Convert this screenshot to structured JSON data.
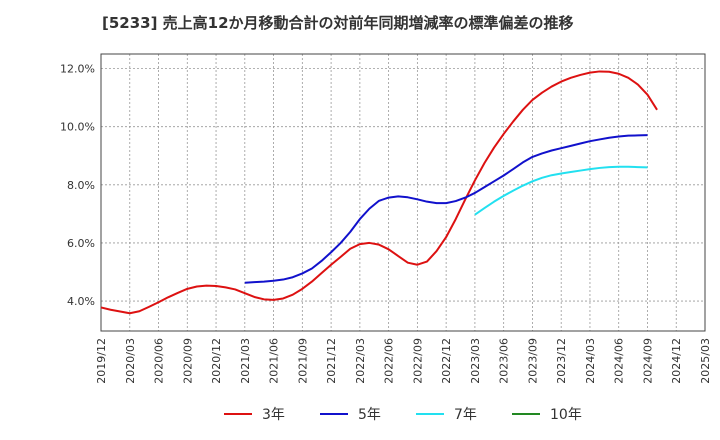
{
  "title": "[5233]  売上高12か月移動合計の対前年同期増減率の標準偏差の推移",
  "chart_data": {
    "type": "line",
    "title": "[5233]  売上高12か月移動合計の対前年同期増減率の標準偏差の推移",
    "xlabel": "",
    "ylabel": "",
    "x_ticks": [
      "2019/12",
      "2020/03",
      "2020/06",
      "2020/09",
      "2020/12",
      "2021/03",
      "2021/06",
      "2021/09",
      "2021/12",
      "2022/03",
      "2022/06",
      "2022/09",
      "2022/12",
      "2023/03",
      "2023/06",
      "2023/09",
      "2023/12",
      "2024/03",
      "2024/06",
      "2024/09",
      "2024/12",
      "2025/03"
    ],
    "y_ticks": [
      4.0,
      6.0,
      8.0,
      10.0,
      12.0
    ],
    "y_tick_labels": [
      "4.0%",
      "6.0%",
      "8.0%",
      "10.0%",
      "12.0%"
    ],
    "ylim": [
      2.97,
      12.5
    ],
    "grid": true,
    "legend_position": "bottom",
    "series": [
      {
        "name": "3年",
        "color": "#dd1111",
        "points": [
          [
            "2019/12",
            3.78
          ],
          [
            "2020/01",
            3.7
          ],
          [
            "2020/02",
            3.64
          ],
          [
            "2020/03",
            3.58
          ],
          [
            "2020/04",
            3.65
          ],
          [
            "2020/05",
            3.8
          ],
          [
            "2020/06",
            3.96
          ],
          [
            "2020/07",
            4.13
          ],
          [
            "2020/08",
            4.28
          ],
          [
            "2020/09",
            4.42
          ],
          [
            "2020/10",
            4.5
          ],
          [
            "2020/11",
            4.53
          ],
          [
            "2020/12",
            4.52
          ],
          [
            "2021/01",
            4.47
          ],
          [
            "2021/02",
            4.4
          ],
          [
            "2021/03",
            4.27
          ],
          [
            "2021/04",
            4.14
          ],
          [
            "2021/05",
            4.06
          ],
          [
            "2021/06",
            4.04
          ],
          [
            "2021/07",
            4.09
          ],
          [
            "2021/08",
            4.22
          ],
          [
            "2021/09",
            4.42
          ],
          [
            "2021/10",
            4.67
          ],
          [
            "2021/11",
            4.96
          ],
          [
            "2021/12",
            5.25
          ],
          [
            "2022/01",
            5.52
          ],
          [
            "2022/02",
            5.8
          ],
          [
            "2022/03",
            5.96
          ],
          [
            "2022/04",
            6.0
          ],
          [
            "2022/05",
            5.94
          ],
          [
            "2022/06",
            5.78
          ],
          [
            "2022/07",
            5.55
          ],
          [
            "2022/08",
            5.32
          ],
          [
            "2022/09",
            5.25
          ],
          [
            "2022/10",
            5.36
          ],
          [
            "2022/11",
            5.72
          ],
          [
            "2022/12",
            6.2
          ],
          [
            "2023/01",
            6.82
          ],
          [
            "2023/02",
            7.5
          ],
          [
            "2023/03",
            8.15
          ],
          [
            "2023/04",
            8.75
          ],
          [
            "2023/05",
            9.28
          ],
          [
            "2023/06",
            9.75
          ],
          [
            "2023/07",
            10.18
          ],
          [
            "2023/08",
            10.58
          ],
          [
            "2023/09",
            10.92
          ],
          [
            "2023/10",
            11.17
          ],
          [
            "2023/11",
            11.38
          ],
          [
            "2023/12",
            11.55
          ],
          [
            "2024/01",
            11.68
          ],
          [
            "2024/02",
            11.78
          ],
          [
            "2024/03",
            11.86
          ],
          [
            "2024/04",
            11.9
          ],
          [
            "2024/05",
            11.89
          ],
          [
            "2024/06",
            11.82
          ],
          [
            "2024/07",
            11.68
          ],
          [
            "2024/08",
            11.45
          ],
          [
            "2024/09",
            11.1
          ],
          [
            "2024/10",
            10.58
          ]
        ]
      },
      {
        "name": "5年",
        "color": "#1111cc",
        "points": [
          [
            "2021/03",
            4.63
          ],
          [
            "2021/04",
            4.65
          ],
          [
            "2021/05",
            4.67
          ],
          [
            "2021/06",
            4.7
          ],
          [
            "2021/07",
            4.74
          ],
          [
            "2021/08",
            4.82
          ],
          [
            "2021/09",
            4.95
          ],
          [
            "2021/10",
            5.12
          ],
          [
            "2021/11",
            5.38
          ],
          [
            "2021/12",
            5.68
          ],
          [
            "2022/01",
            6.0
          ],
          [
            "2022/02",
            6.38
          ],
          [
            "2022/03",
            6.82
          ],
          [
            "2022/04",
            7.18
          ],
          [
            "2022/05",
            7.45
          ],
          [
            "2022/06",
            7.56
          ],
          [
            "2022/07",
            7.6
          ],
          [
            "2022/08",
            7.57
          ],
          [
            "2022/09",
            7.5
          ],
          [
            "2022/10",
            7.42
          ],
          [
            "2022/11",
            7.37
          ],
          [
            "2022/12",
            7.37
          ],
          [
            "2023/01",
            7.44
          ],
          [
            "2023/02",
            7.56
          ],
          [
            "2023/03",
            7.72
          ],
          [
            "2023/04",
            7.92
          ],
          [
            "2023/05",
            8.12
          ],
          [
            "2023/06",
            8.32
          ],
          [
            "2023/07",
            8.54
          ],
          [
            "2023/08",
            8.77
          ],
          [
            "2023/09",
            8.96
          ],
          [
            "2023/10",
            9.08
          ],
          [
            "2023/11",
            9.18
          ],
          [
            "2023/12",
            9.26
          ],
          [
            "2024/01",
            9.34
          ],
          [
            "2024/02",
            9.42
          ],
          [
            "2024/03",
            9.5
          ],
          [
            "2024/04",
            9.56
          ],
          [
            "2024/05",
            9.62
          ],
          [
            "2024/06",
            9.66
          ],
          [
            "2024/07",
            9.69
          ],
          [
            "2024/08",
            9.7
          ],
          [
            "2024/09",
            9.71
          ]
        ]
      },
      {
        "name": "7年",
        "color": "#22e0f0",
        "points": [
          [
            "2023/03",
            6.97
          ],
          [
            "2023/04",
            7.2
          ],
          [
            "2023/05",
            7.42
          ],
          [
            "2023/06",
            7.62
          ],
          [
            "2023/07",
            7.8
          ],
          [
            "2023/08",
            7.97
          ],
          [
            "2023/09",
            8.12
          ],
          [
            "2023/10",
            8.24
          ],
          [
            "2023/11",
            8.33
          ],
          [
            "2023/12",
            8.39
          ],
          [
            "2024/01",
            8.44
          ],
          [
            "2024/02",
            8.49
          ],
          [
            "2024/03",
            8.54
          ],
          [
            "2024/04",
            8.58
          ],
          [
            "2024/05",
            8.61
          ],
          [
            "2024/06",
            8.62
          ],
          [
            "2024/07",
            8.62
          ],
          [
            "2024/08",
            8.61
          ],
          [
            "2024/09",
            8.6
          ]
        ]
      },
      {
        "name": "10年",
        "color": "#228822",
        "points": []
      }
    ]
  }
}
